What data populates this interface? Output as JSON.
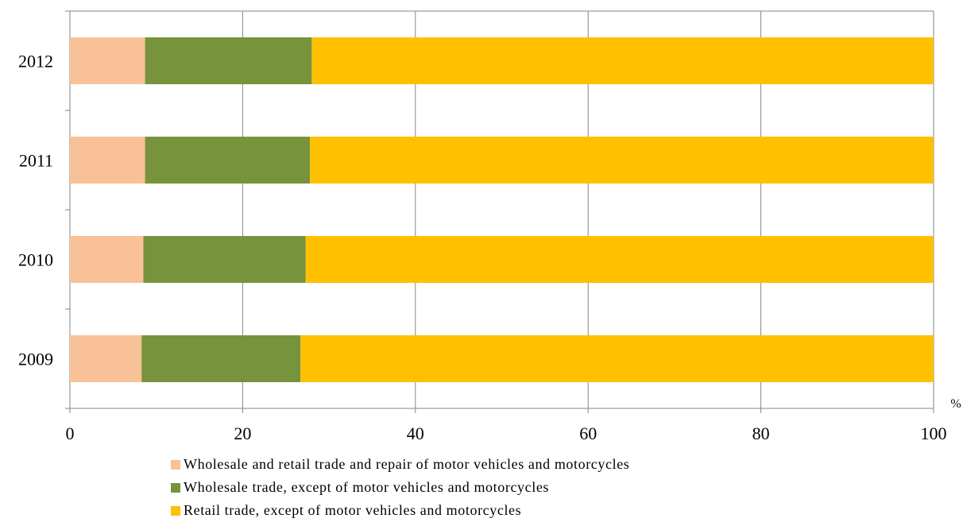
{
  "chart_data": {
    "type": "bar",
    "orientation": "horizontal",
    "stacked": true,
    "categories": [
      "2009",
      "2010",
      "2011",
      "2012"
    ],
    "series": [
      {
        "name": "Wholesale and retail trade and repair of motor vehicles and motorcycles",
        "color": "#F8C197",
        "values": [
          8.3,
          8.5,
          8.7,
          8.7
        ]
      },
      {
        "name": "Wholesale trade, except of motor vehicles and motorcycles",
        "color": "#77933C",
        "values": [
          18.4,
          18.8,
          19.1,
          19.3
        ]
      },
      {
        "name": "Retail trade, except of motor vehicles and motorcycles",
        "color": "#FFC000",
        "values": [
          73.3,
          72.7,
          72.2,
          72.0
        ]
      }
    ],
    "xlim": [
      0,
      100
    ],
    "xticks": [
      "0",
      "20",
      "40",
      "60",
      "80",
      "100"
    ],
    "xunit": "%",
    "grid": true,
    "legend_position": "bottom"
  }
}
